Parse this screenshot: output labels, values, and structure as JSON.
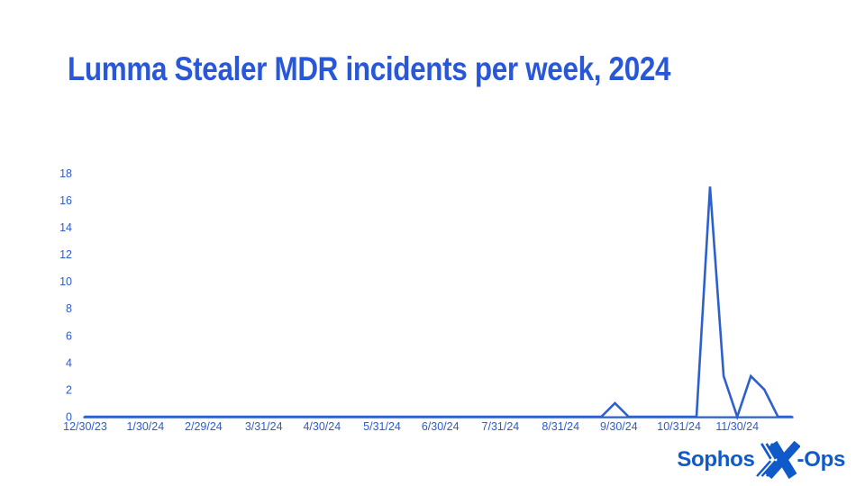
{
  "colors": {
    "background": "#ffffff",
    "title": "#2857d8",
    "line": "#2e60cd",
    "axis": "#2e60cd",
    "labels": "#2b5bd2",
    "logo": "#1059c9"
  },
  "logo": {
    "prefix": "Sophos",
    "suffix": "-Ops",
    "x_icon": "x-ops-x-mark"
  },
  "chart_data": {
    "type": "line",
    "title": "Lumma Stealer MDR incidents per week, 2024",
    "xlabel": "",
    "ylabel": "",
    "grid": false,
    "legend": null,
    "ylim": [
      0,
      18
    ],
    "y_ticks": [
      0,
      2,
      4,
      6,
      8,
      10,
      12,
      14,
      16,
      18
    ],
    "x_unit": "week",
    "x_start_date": "12/30/23",
    "x_tick_labels": [
      "12/30/23",
      "1/30/24",
      "2/29/24",
      "3/31/24",
      "4/30/24",
      "5/31/24",
      "6/30/24",
      "7/31/24",
      "8/31/24",
      "9/30/24",
      "10/31/24",
      "11/30/24"
    ],
    "values": [
      0,
      0,
      0,
      0,
      0,
      0,
      0,
      0,
      0,
      0,
      0,
      0,
      0,
      0,
      0,
      0,
      0,
      0,
      0,
      0,
      0,
      0,
      0,
      0,
      0,
      0,
      0,
      0,
      0,
      0,
      0,
      0,
      0,
      0,
      0,
      0,
      0,
      0,
      0,
      1,
      0,
      0,
      0,
      0,
      0,
      0,
      17,
      3,
      0,
      3,
      2,
      0,
      0
    ]
  }
}
